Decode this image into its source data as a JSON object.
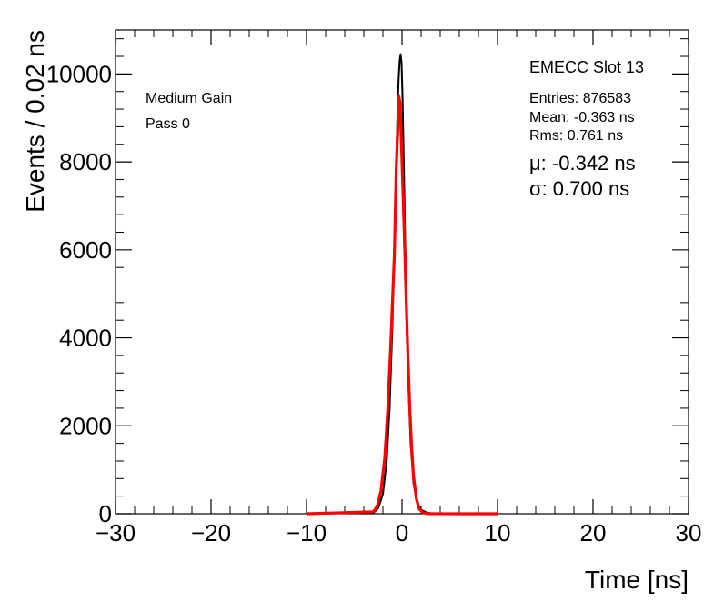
{
  "chart_data": {
    "type": "line",
    "xlabel": "Time [ns]",
    "ylabel": "Events / 0.02 ns",
    "xlim": [
      -30,
      30
    ],
    "ylim": [
      0,
      11000
    ],
    "x_ticks": [
      -30,
      -20,
      -10,
      0,
      10,
      20,
      30
    ],
    "x_tick_labels": [
      "−30",
      "−20",
      "−10",
      "0",
      "10",
      "20",
      "30"
    ],
    "y_ticks": [
      0,
      2000,
      4000,
      6000,
      8000,
      10000
    ],
    "y_tick_labels": [
      "0",
      "2000",
      "4000",
      "6000",
      "8000",
      "10000"
    ],
    "grid": false,
    "series": [
      {
        "color": "#000000",
        "x": [
          -10,
          -3.0,
          -2.5,
          -2.0,
          -1.6,
          -1.3,
          -1.0,
          -0.8,
          -0.6,
          -0.45,
          -0.35,
          -0.25,
          -0.15,
          -0.05,
          0.05,
          0.15,
          0.3,
          0.5,
          0.7,
          0.9,
          1.2,
          1.6,
          2.0,
          2.6,
          3.2,
          10
        ],
        "y": [
          0,
          20,
          120,
          450,
          1200,
          2400,
          4300,
          6100,
          8000,
          9300,
          9900,
          10300,
          10450,
          10250,
          9500,
          8400,
          6600,
          4400,
          2800,
          1600,
          700,
          250,
          90,
          25,
          5,
          0
        ]
      },
      {
        "color": "#ff0000",
        "x": [
          -10,
          -3.0,
          -2.6,
          -2.2,
          -1.8,
          -1.5,
          -1.2,
          -1.0,
          -0.8,
          -0.6,
          -0.45,
          -0.342,
          -0.2,
          0.0,
          0.2,
          0.4,
          0.6,
          0.8,
          1.0,
          1.2,
          1.5,
          1.8,
          2.2,
          2.6,
          3.0,
          10
        ],
        "y": [
          0,
          45,
          170,
          520,
          1290,
          2340,
          3730,
          4810,
          5900,
          7890,
          8690,
          9500,
          9330,
          8010,
          6660,
          5140,
          3700,
          2470,
          1530,
          870,
          340,
          110,
          25,
          5,
          1,
          0
        ]
      }
    ],
    "annotations": {
      "gain": "Medium Gain",
      "pass": "Pass 0",
      "slot": "EMECC Slot 13",
      "entries": "Entries: 876583",
      "mean": "Mean: -0.363 ns",
      "rms": "Rms: 0.761 ns",
      "mu": "μ: -0.342 ns",
      "sigma": "σ: 0.700 ns"
    }
  }
}
